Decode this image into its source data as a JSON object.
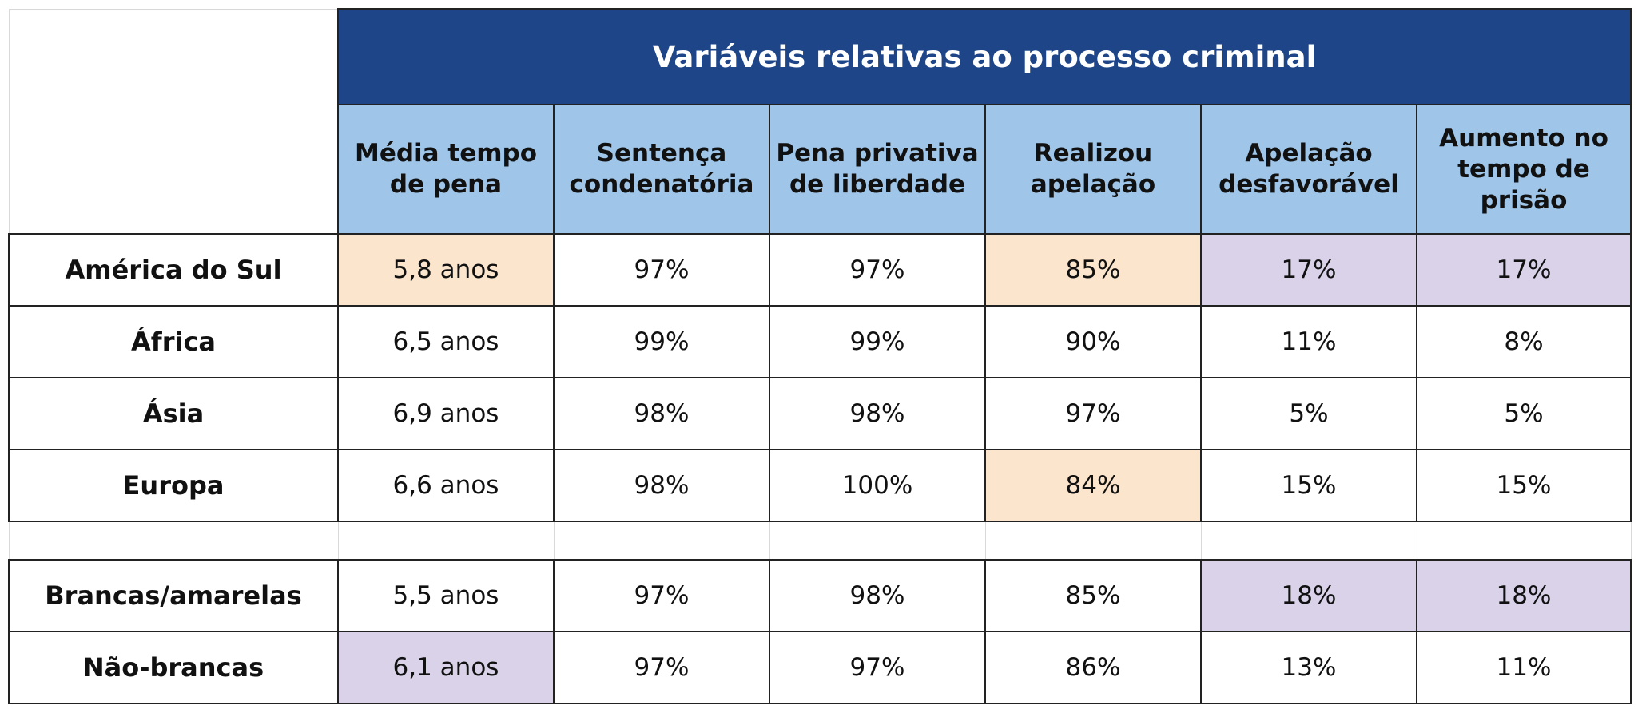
{
  "chart_data": {
    "type": "table",
    "title": "Variáveis relativas ao processo criminal",
    "columns": [
      "Média tempo\nde pena",
      "Sentença\ncondenatória",
      "Pena privativa\nde liberdade",
      "Realizou\napelação",
      "Apelação\ndesfavorável",
      "Aumento no\ntempo de\nprisão"
    ],
    "groups": [
      {
        "rows": [
          {
            "label": "América do Sul",
            "values": [
              "5,8 anos",
              "97%",
              "97%",
              "85%",
              "17%",
              "17%"
            ],
            "highlights": [
              "orange",
              "",
              "",
              "orange",
              "purple",
              "purple"
            ]
          },
          {
            "label": "África",
            "values": [
              "6,5 anos",
              "99%",
              "99%",
              "90%",
              "11%",
              "8%"
            ],
            "highlights": [
              "",
              "",
              "",
              "",
              "",
              ""
            ]
          },
          {
            "label": "Ásia",
            "values": [
              "6,9 anos",
              "98%",
              "98%",
              "97%",
              "5%",
              "5%"
            ],
            "highlights": [
              "",
              "",
              "",
              "",
              "",
              ""
            ]
          },
          {
            "label": "Europa",
            "values": [
              "6,6 anos",
              "98%",
              "100%",
              "84%",
              "15%",
              "15%"
            ],
            "highlights": [
              "",
              "",
              "",
              "orange",
              "",
              ""
            ]
          }
        ]
      },
      {
        "rows": [
          {
            "label": "Brancas/amarelas",
            "values": [
              "5,5 anos",
              "97%",
              "98%",
              "85%",
              "18%",
              "18%"
            ],
            "highlights": [
              "",
              "",
              "",
              "",
              "purple",
              "purple"
            ]
          },
          {
            "label": "Não-brancas",
            "values": [
              "6,1 anos",
              "97%",
              "97%",
              "86%",
              "13%",
              "11%"
            ],
            "highlights": [
              "purple",
              "",
              "",
              "",
              "",
              ""
            ]
          }
        ]
      }
    ],
    "colors": {
      "title_background": "#1e4588",
      "header_background": "#9fc5e8",
      "highlight_orange": "#fce5cd",
      "highlight_purple": "#d9d2e9"
    }
  }
}
